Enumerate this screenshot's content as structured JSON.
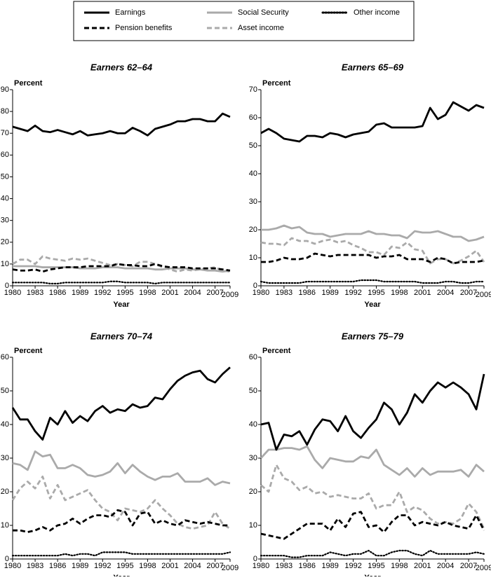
{
  "legend": [
    {
      "name": "Earnings",
      "color": "#000000",
      "dash": "solid"
    },
    {
      "name": "Social Security",
      "color": "#aaaaaa",
      "dash": "solid"
    },
    {
      "name": "Other income",
      "color": "#000000",
      "dash": "dotted"
    },
    {
      "name": "Pension benefits",
      "color": "#000000",
      "dash": "dashed"
    },
    {
      "name": "Asset income",
      "color": "#aaaaaa",
      "dash": "dashed"
    }
  ],
  "chart_data": [
    {
      "type": "line",
      "title": "Earners 62–64",
      "y_label": "Percent",
      "x_label": "Year",
      "x": [
        1980,
        1981,
        1982,
        1983,
        1984,
        1985,
        1986,
        1987,
        1988,
        1989,
        1990,
        1991,
        1992,
        1993,
        1994,
        1995,
        1996,
        1997,
        1998,
        1999,
        2000,
        2001,
        2002,
        2003,
        2004,
        2005,
        2006,
        2007,
        2008,
        2009
      ],
      "xlim": [
        1980,
        2009
      ],
      "xticks": [
        1980,
        1983,
        1986,
        1989,
        1992,
        1995,
        1998,
        2001,
        2004,
        2007,
        2009
      ],
      "ylim": [
        0,
        90
      ],
      "yticks": [
        0,
        10,
        20,
        30,
        40,
        50,
        60,
        70,
        80,
        90
      ],
      "series": [
        {
          "values": [
            73,
            72,
            71,
            73.5,
            71,
            70.5,
            71.5,
            70.5,
            69.5,
            71,
            69,
            69.5,
            70,
            71,
            70,
            70,
            72.5,
            71,
            69,
            72,
            73,
            74,
            75.5,
            75.5,
            76.5,
            76.5,
            75.5,
            75.5,
            79,
            77.5
          ]
        },
        {
          "values": [
            9,
            9,
            9,
            9,
            8.5,
            8.5,
            8.5,
            8.5,
            8.5,
            8,
            8,
            8,
            8.5,
            8.5,
            8.5,
            8,
            8,
            8,
            8,
            7.5,
            7.5,
            8,
            8,
            8,
            7.5,
            7.5,
            7,
            7,
            6.5,
            7
          ]
        },
        {
          "values": [
            1.5,
            1.5,
            1.5,
            1.5,
            1.5,
            1,
            1,
            1.5,
            1.5,
            1.5,
            1.5,
            1.5,
            1.5,
            2,
            2,
            1.5,
            1.5,
            1.5,
            1.5,
            1,
            1.5,
            1.5,
            1.5,
            1.5,
            1.5,
            1.5,
            1.5,
            1.5,
            1.5,
            1.5
          ]
        },
        {
          "values": [
            7.5,
            7,
            7,
            7.5,
            6.5,
            7.5,
            8,
            8.5,
            8.5,
            8.5,
            9,
            9,
            9,
            9,
            10,
            9.5,
            9.5,
            9,
            9,
            10,
            9,
            8.5,
            8.5,
            8.5,
            8,
            8,
            8,
            8,
            7.5,
            7
          ]
        },
        {
          "values": [
            10,
            12,
            12,
            10,
            13.5,
            12.5,
            12,
            11.5,
            12.5,
            12,
            12.5,
            11.5,
            10.5,
            9.5,
            10,
            9.5,
            9,
            11,
            11,
            10,
            8.5,
            7.5,
            6.5,
            7.5,
            7,
            7.5,
            8,
            8.5,
            7,
            6.5
          ]
        }
      ]
    },
    {
      "type": "line",
      "title": "Earners 65–69",
      "y_label": "Percent",
      "x_label": "Year",
      "x": [
        1980,
        1981,
        1982,
        1983,
        1984,
        1985,
        1986,
        1987,
        1988,
        1989,
        1990,
        1991,
        1992,
        1993,
        1994,
        1995,
        1996,
        1997,
        1998,
        1999,
        2000,
        2001,
        2002,
        2003,
        2004,
        2005,
        2006,
        2007,
        2008,
        2009
      ],
      "xlim": [
        1980,
        2009
      ],
      "xticks": [
        1980,
        1983,
        1986,
        1989,
        1992,
        1995,
        1998,
        2001,
        2004,
        2007,
        2009
      ],
      "ylim": [
        0,
        70
      ],
      "yticks": [
        0,
        10,
        20,
        30,
        40,
        50,
        60,
        70
      ],
      "series": [
        {
          "values": [
            54.5,
            56,
            54.5,
            52.5,
            52,
            51.5,
            53.5,
            53.5,
            53,
            54.5,
            54,
            53,
            54,
            54.5,
            55,
            57.5,
            58,
            56.5,
            56.5,
            56.5,
            56.5,
            57,
            63.5,
            59.5,
            61,
            65.5,
            64,
            62.5,
            64.5,
            63.5
          ]
        },
        {
          "values": [
            20,
            20,
            20.5,
            21.5,
            20.5,
            21,
            19,
            18.5,
            18.5,
            17.5,
            18,
            18.5,
            18.5,
            18.5,
            19.5,
            18.5,
            18.5,
            18,
            18,
            17,
            19.5,
            19,
            19,
            19.5,
            18.5,
            17.5,
            17.5,
            16,
            16.5,
            17.5
          ]
        },
        {
          "values": [
            1.5,
            1,
            1,
            1,
            1,
            1,
            1.5,
            1.5,
            1.5,
            1.5,
            1.5,
            1.5,
            1.5,
            2,
            2,
            2,
            1.5,
            1.5,
            1.5,
            1.5,
            1.5,
            1,
            1,
            1,
            1.5,
            1.5,
            1,
            1,
            1.5,
            1.5
          ]
        },
        {
          "values": [
            8.5,
            8.5,
            9,
            10,
            9.5,
            9.5,
            10,
            11.5,
            11,
            10.5,
            11,
            11,
            11,
            11,
            11,
            10,
            10.5,
            10.5,
            11,
            9.5,
            9.5,
            9.5,
            8.5,
            10,
            9.5,
            8,
            8.5,
            8.5,
            8.5,
            9
          ]
        },
        {
          "values": [
            15.5,
            15,
            15,
            14.5,
            17,
            16,
            16,
            15,
            16,
            16.5,
            15.5,
            16,
            14.5,
            13.5,
            12,
            12,
            11,
            14,
            13.5,
            15.5,
            13,
            12.5,
            8,
            9.5,
            9.5,
            8,
            9,
            10.5,
            12.5,
            8.5
          ]
        }
      ]
    },
    {
      "type": "line",
      "title": "Earners 70–74",
      "y_label": "Percent",
      "x_label": "Year",
      "x": [
        1980,
        1981,
        1982,
        1983,
        1984,
        1985,
        1986,
        1987,
        1988,
        1989,
        1990,
        1991,
        1992,
        1993,
        1994,
        1995,
        1996,
        1997,
        1998,
        1999,
        2000,
        2001,
        2002,
        2003,
        2004,
        2005,
        2006,
        2007,
        2008,
        2009
      ],
      "xlim": [
        1980,
        2009
      ],
      "xticks": [
        1980,
        1983,
        1986,
        1989,
        1992,
        1995,
        1998,
        2001,
        2004,
        2007,
        2009
      ],
      "ylim": [
        0,
        60
      ],
      "yticks": [
        0,
        10,
        20,
        30,
        40,
        50,
        60
      ],
      "series": [
        {
          "values": [
            45,
            41.5,
            41.5,
            38,
            35.5,
            42,
            40,
            44,
            40.5,
            42.5,
            41,
            44,
            45.5,
            43.5,
            44.5,
            44,
            46,
            45,
            45.5,
            48,
            47.5,
            50.5,
            53,
            54.5,
            55.5,
            56,
            53.5,
            52.5,
            55,
            57
          ]
        },
        {
          "values": [
            28.5,
            28,
            26.5,
            32,
            30.5,
            31,
            27,
            27,
            28,
            27,
            25,
            24.5,
            25,
            26,
            28.5,
            25.5,
            28,
            26,
            24.5,
            23.5,
            24.5,
            24.5,
            25.5,
            23,
            23,
            23,
            24,
            22,
            23,
            22.5
          ]
        },
        {
          "values": [
            1,
            1,
            1,
            1,
            1,
            1,
            1,
            1.5,
            1,
            1.5,
            1.5,
            1,
            2,
            2,
            2,
            2,
            1.5,
            1.5,
            1.5,
            1.5,
            1.5,
            1.5,
            1.5,
            1.5,
            1.5,
            1.5,
            1.5,
            1.5,
            1.5,
            2
          ]
        },
        {
          "values": [
            8.5,
            8.5,
            8,
            8.5,
            9.5,
            8.5,
            10,
            10.5,
            12,
            10.5,
            12,
            13,
            13,
            12.5,
            14.5,
            14,
            10,
            13.5,
            14,
            10.5,
            11.5,
            10.5,
            10,
            11.5,
            11,
            10.5,
            11,
            10.5,
            10,
            10
          ]
        },
        {
          "values": [
            17.5,
            21,
            23,
            21,
            24.5,
            18,
            22,
            17.5,
            18.5,
            19.5,
            20.5,
            17.5,
            15,
            14,
            11.5,
            15,
            14.5,
            14,
            15,
            17.5,
            15,
            13,
            10.5,
            9.5,
            9,
            9.5,
            10,
            14,
            10.5,
            9
          ]
        }
      ]
    },
    {
      "type": "line",
      "title": "Earners 75–79",
      "y_label": "Percent",
      "x_label": "Year",
      "x": [
        1980,
        1981,
        1982,
        1983,
        1984,
        1985,
        1986,
        1987,
        1988,
        1989,
        1990,
        1991,
        1992,
        1993,
        1994,
        1995,
        1996,
        1997,
        1998,
        1999,
        2000,
        2001,
        2002,
        2003,
        2004,
        2005,
        2006,
        2007,
        2008,
        2009
      ],
      "xlim": [
        1980,
        2009
      ],
      "xticks": [
        1980,
        1983,
        1986,
        1989,
        1992,
        1995,
        1998,
        2001,
        2004,
        2007,
        2009
      ],
      "ylim": [
        0,
        60
      ],
      "yticks": [
        0,
        10,
        20,
        30,
        40,
        50,
        60
      ],
      "series": [
        {
          "values": [
            40,
            40.5,
            32.5,
            37,
            36.5,
            38,
            34,
            38.5,
            41.5,
            41,
            38,
            42.5,
            38,
            36,
            39,
            41.5,
            46.5,
            44.5,
            40,
            43.5,
            49,
            46.5,
            50,
            52.5,
            51,
            52.5,
            51,
            49,
            44.5,
            55
          ]
        },
        {
          "values": [
            30,
            32.5,
            32.5,
            33,
            33,
            32.5,
            33.5,
            29.5,
            27,
            30,
            29.5,
            29,
            29,
            30.5,
            30,
            32.5,
            28,
            26.5,
            25,
            27,
            24.5,
            27,
            25,
            26,
            26,
            26,
            26.5,
            24.5,
            28,
            26
          ]
        },
        {
          "values": [
            1,
            1,
            1,
            1,
            0.5,
            0.5,
            1,
            1,
            1,
            2,
            1.5,
            1,
            1.5,
            1.5,
            2.5,
            1,
            1,
            2,
            2.5,
            2.5,
            1.5,
            1,
            2.5,
            1.5,
            1.5,
            1.5,
            1.5,
            1.5,
            2,
            1.5
          ]
        },
        {
          "values": [
            7.5,
            7,
            6.5,
            6,
            7.5,
            9,
            10.5,
            10.5,
            10.5,
            8.5,
            12,
            9.5,
            13.5,
            14,
            9.5,
            10,
            8,
            11,
            13,
            13,
            10,
            11,
            10.5,
            10,
            11,
            10,
            9.5,
            9,
            13,
            8.5
          ]
        },
        {
          "values": [
            22,
            20,
            28,
            24,
            23,
            20.5,
            21.5,
            19.5,
            20,
            18.5,
            19,
            18.5,
            18,
            18,
            19.5,
            15,
            16,
            16,
            20,
            14,
            15.5,
            14.5,
            12,
            10.5,
            11,
            10.5,
            12,
            16.5,
            14,
            9
          ]
        }
      ]
    }
  ]
}
